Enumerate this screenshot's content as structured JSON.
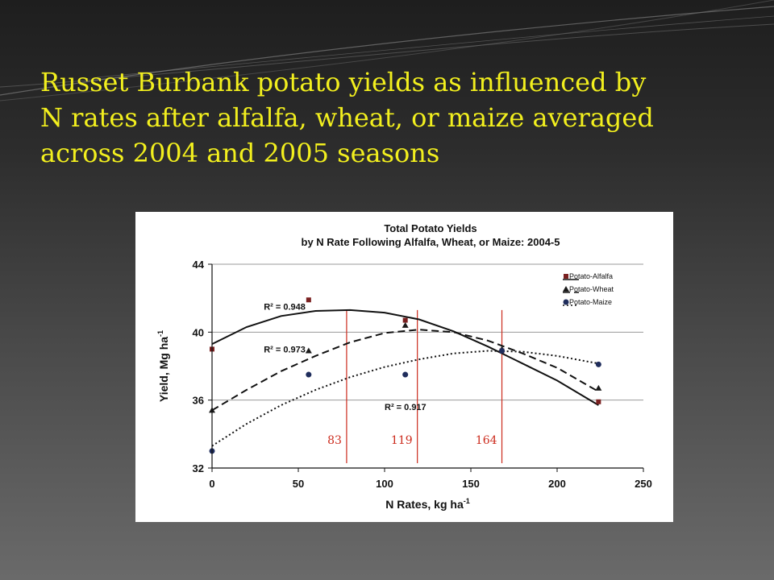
{
  "slide": {
    "title_lines": [
      "Russet Burbank potato yields as influenced by",
      "N rates after alfalfa, wheat, or maize averaged",
      "across 2004 and 2005 seasons"
    ]
  },
  "chart_data": {
    "type": "scatter",
    "title": "Total Potato Yields",
    "subtitle": "by N Rate Following Alfalfa, Wheat, or Maize: 2004-5",
    "xlabel": "N Rates, kg ha",
    "xlabel_sup": "-1",
    "ylabel": "Yield, Mg ha",
    "ylabel_sup": "-1",
    "xlim": [
      0,
      250
    ],
    "ylim": [
      32,
      44
    ],
    "xticks": [
      0,
      50,
      100,
      150,
      200,
      250
    ],
    "yticks": [
      32,
      36,
      40,
      44
    ],
    "grid": "horizontal",
    "legend_position": "top-right",
    "series": [
      {
        "name": "Potato-Alfalfa",
        "marker": "square",
        "color": "#7a2020",
        "line_style": "solid",
        "x": [
          0,
          56,
          112,
          168,
          224
        ],
        "y": [
          39.0,
          41.9,
          40.7,
          38.9,
          35.9
        ],
        "trend_x": [
          0,
          20,
          40,
          60,
          80,
          100,
          120,
          140,
          160,
          180,
          200,
          224
        ],
        "trend_y": [
          39.3,
          40.3,
          40.95,
          41.25,
          41.3,
          41.15,
          40.75,
          40.05,
          39.15,
          38.15,
          37.15,
          35.7
        ],
        "r2_label": "R² = 0.948"
      },
      {
        "name": "Potato-Wheat",
        "marker": "triangle",
        "color": "#1a1a1a",
        "line_style": "dashed",
        "x": [
          0,
          56,
          112,
          168,
          224
        ],
        "y": [
          35.4,
          38.9,
          40.4,
          39.0,
          36.7
        ],
        "trend_x": [
          0,
          20,
          40,
          60,
          80,
          100,
          120,
          140,
          160,
          180,
          200,
          224
        ],
        "trend_y": [
          35.4,
          36.6,
          37.7,
          38.6,
          39.4,
          39.95,
          40.15,
          40.0,
          39.5,
          38.75,
          37.9,
          36.5
        ],
        "r2_label": "R² = 0.973"
      },
      {
        "name": "Potato-Maize",
        "marker": "circle",
        "color": "#1f2d5c",
        "line_style": "dotted",
        "x": [
          0,
          56,
          112,
          168,
          224
        ],
        "y": [
          33.0,
          37.5,
          37.5,
          38.9,
          38.1
        ],
        "trend_x": [
          0,
          20,
          40,
          60,
          80,
          100,
          120,
          140,
          160,
          180,
          200,
          224
        ],
        "trend_y": [
          33.3,
          34.6,
          35.7,
          36.6,
          37.35,
          37.95,
          38.4,
          38.75,
          38.9,
          38.85,
          38.6,
          38.15
        ],
        "r2_label": "R² = 0.917"
      }
    ],
    "reference_lines": [
      {
        "x": 78,
        "label": "83"
      },
      {
        "x": 119,
        "label": "119"
      },
      {
        "x": 168,
        "label": "164"
      }
    ],
    "reference_color": "#cc2b1d"
  }
}
